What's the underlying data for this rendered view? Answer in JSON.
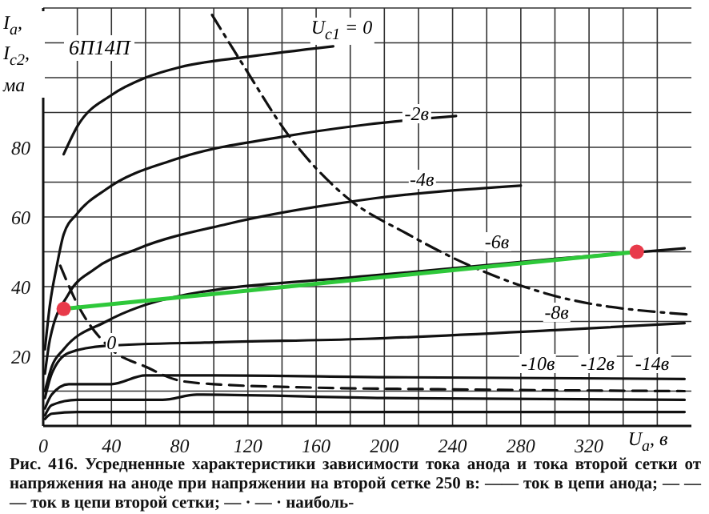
{
  "chart_data": {
    "type": "line",
    "title": "6П14П",
    "xlabel": "U$_{a}$, в",
    "ylabel": "I$_{a}$, I$_{c2}$, ма",
    "xlim": [
      0,
      380
    ],
    "ylim": [
      0,
      120
    ],
    "xticks": [
      0,
      {
        "value": 20,
        "label": null
      },
      40,
      {
        "value": 60,
        "label": null
      },
      80,
      {
        "value": 100,
        "label": null
      },
      120,
      {
        "value": 140,
        "label": null
      },
      160,
      {
        "value": 180,
        "label": null
      },
      200,
      {
        "value": 220,
        "label": null
      },
      240,
      {
        "value": 260,
        "label": null
      },
      280,
      {
        "value": 300,
        "label": null
      },
      320,
      {
        "value": 340,
        "label": null
      },
      {
        "value": 360,
        "label": null
      }
    ],
    "yticks": [
      {
        "value": 0,
        "label": null
      },
      {
        "value": 10,
        "label": null
      },
      20,
      {
        "value": 30,
        "label": null
      },
      40,
      {
        "value": 50,
        "label": null
      },
      60,
      {
        "value": 70,
        "label": null
      },
      80,
      {
        "value": 90,
        "label": null
      },
      {
        "value": 100,
        "label": null
      },
      {
        "value": 110,
        "label": null
      },
      {
        "value": 120,
        "label": null
      }
    ],
    "grid": true,
    "series": [
      {
        "color": "#111111",
        "line_style": "solid",
        "x": [
          12,
          20,
          40,
          60,
          80,
          120,
          170
        ],
        "values": [
          78,
          86,
          95,
          100,
          103,
          106,
          109
        ]
      },
      {
        "color": "#111111",
        "line_style": "solid",
        "x": [
          1,
          4,
          8,
          12,
          20,
          37,
          77,
          140,
          189,
          242
        ],
        "values": [
          22,
          35,
          46,
          55,
          61,
          68,
          76.5,
          83,
          86.5,
          89
        ]
      },
      {
        "color": "#111111",
        "line_style": "solid",
        "x": [
          1,
          4,
          15,
          30,
          56,
          108,
          189,
          280
        ],
        "values": [
          15,
          25,
          38,
          45,
          51,
          58,
          65,
          69
        ]
      },
      {
        "color": "#111111",
        "line_style": "solid",
        "x": [
          1,
          5,
          12,
          37,
          77,
          189,
          301,
          376
        ],
        "values": [
          10,
          17,
          22,
          30,
          37,
          43,
          48,
          51
        ]
      },
      {
        "color": "#111111",
        "line_style": "solid",
        "x": [
          1,
          5,
          15,
          37,
          100,
          189,
          300,
          376
        ],
        "values": [
          8,
          15,
          21,
          23,
          24,
          25,
          27.5,
          29.5
        ]
      },
      {
        "color": "#111111",
        "line_style": "solid",
        "x": [
          1,
          5,
          15,
          40,
          60,
          100,
          200,
          376
        ],
        "values": [
          5,
          9,
          12,
          12,
          14.5,
          14.5,
          14,
          13.5
        ]
      },
      {
        "color": "#111111",
        "line_style": "solid",
        "x": [
          1,
          5,
          20,
          70,
          90,
          200,
          376
        ],
        "values": [
          3,
          6,
          7.5,
          7.5,
          9,
          8,
          7.5
        ]
      },
      {
        "color": "#111111",
        "line_style": "solid",
        "x": [
          1,
          5,
          20,
          376
        ],
        "values": [
          2,
          3.5,
          4,
          4
        ]
      },
      {
        "color": "#111111",
        "line_style": "dashed",
        "x": [
          10,
          20,
          40,
          60,
          80,
          100,
          160,
          240,
          376
        ],
        "values": [
          46,
          35,
          22,
          17,
          13,
          12,
          11,
          10.5,
          10
        ]
      },
      {
        "color": "#111111",
        "line_style": "dashdot",
        "x": [
          99,
          118,
          143,
          177,
          214,
          248,
          295,
          378
        ],
        "values": [
          118,
          103,
          84,
          66,
          55,
          46.5,
          38,
          32
        ]
      },
      {
        "color": "#2ec83a",
        "line_style": "solid",
        "x": [
          12,
          348
        ],
        "values": [
          33.6,
          50
        ]
      },
      {
        "type": "scatter",
        "marker": "circle",
        "color": "#e83a4a",
        "x": [
          12,
          348
        ],
        "values": [
          33.6,
          50
        ]
      }
    ],
    "annotations": [
      {
        "text": "U$_{c1}$ = 0",
        "x": 175,
        "y": 114
      },
      {
        "text": "-2в",
        "x": 219,
        "y": 89
      },
      {
        "text": "-4в",
        "x": 222,
        "y": 70.5
      },
      {
        "text": "-6в",
        "x": 266,
        "y": 52.5
      },
      {
        "text": "-8в",
        "x": 301,
        "y": 32
      },
      {
        "text": "0",
        "x": 40,
        "y": 23.5
      },
      {
        "text": "-10в",
        "x": 290,
        "y": 17.5
      },
      {
        "text": "-12в",
        "x": 325,
        "y": 17.5
      },
      {
        "text": "-14в",
        "x": 357,
        "y": 17.5
      },
      "Рис. 416. Усредненные характеристики зависимости тока анода и тока второй сетки от напряжения на аноде при напряжении на второй сетке 250 в: —— ток в цепи анода; — — — ток в цепи второй сетки; — · — · наиболь-"
    ]
  }
}
